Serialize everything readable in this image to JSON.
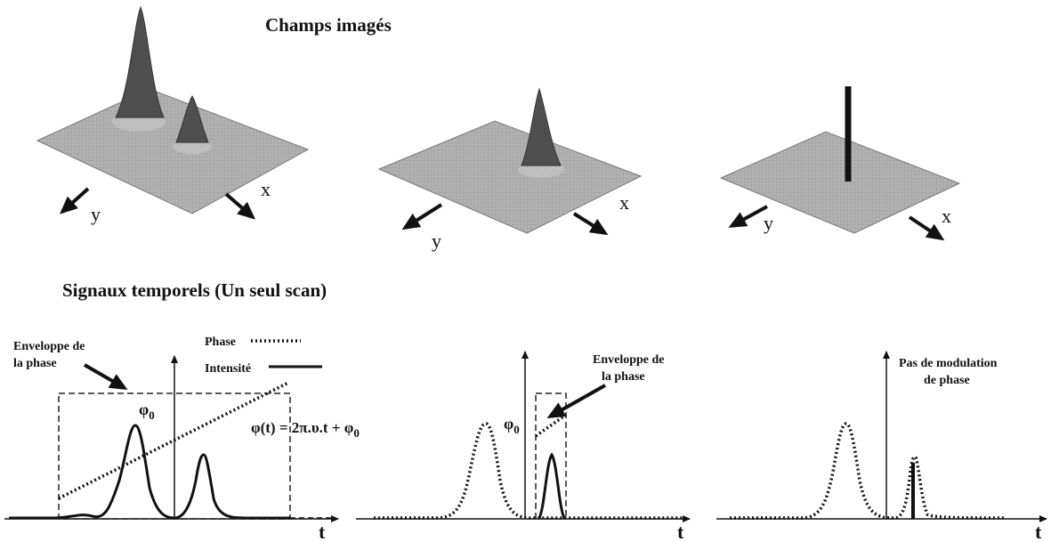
{
  "titles": {
    "top": "Champs imagés",
    "bottom": "Signaux temporels (Un seul scan)"
  },
  "axes": {
    "x": "x",
    "y": "y",
    "t": "t"
  },
  "legend": {
    "phase": "Phase",
    "intensity": "Intensité"
  },
  "annotations": {
    "envelope_line1": "Enveloppe de",
    "envelope_line2": "la phase",
    "phi0": "φ",
    "phi0_sub": "0",
    "formula": "φ(t) = 2π.υ.t + φ",
    "formula_sub": "0",
    "step_line1": "Pas de modulation",
    "step_line2": "de phase"
  },
  "colors": {
    "surface": "#a8a8a8",
    "peak": "#555555",
    "ink": "#111111"
  }
}
